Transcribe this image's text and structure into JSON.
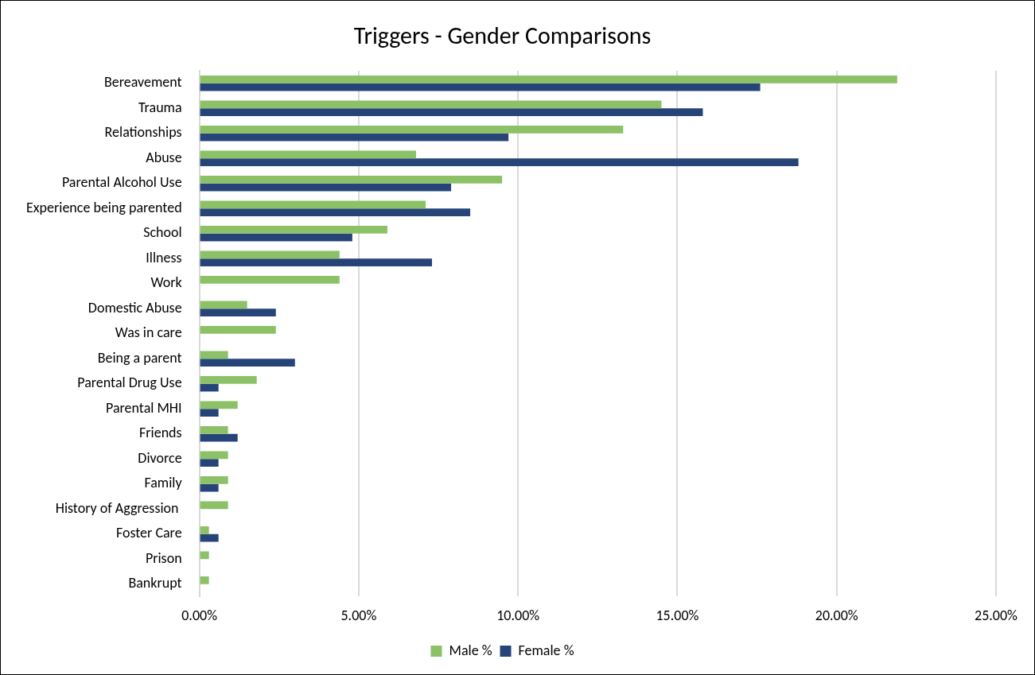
{
  "chart_data": {
    "type": "bar",
    "orientation": "horizontal",
    "title": "Triggers - Gender Comparisons",
    "categories": [
      "Bereavement",
      "Trauma",
      "Relationships",
      "Abuse",
      "Parental Alcohol Use",
      "Experience being parented",
      "School",
      "Illness",
      "Work",
      "Domestic Abuse",
      "Was in care",
      "Being a parent",
      "Parental Drug Use",
      "Parental MHI",
      "Friends",
      "Divorce",
      "Family",
      "History of Aggression ",
      "Foster Care",
      "Prison",
      "Bankrupt"
    ],
    "series": [
      {
        "name": "Male %",
        "color": "#8cc168",
        "values": [
          21.9,
          14.5,
          13.3,
          6.8,
          9.5,
          7.1,
          5.9,
          4.4,
          4.4,
          1.5,
          2.4,
          0.9,
          1.8,
          1.2,
          0.9,
          0.9,
          0.9,
          0.9,
          0.3,
          0.3,
          0.3
        ]
      },
      {
        "name": "Female %",
        "color": "#264478",
        "values": [
          17.6,
          15.8,
          9.7,
          18.8,
          7.9,
          8.5,
          4.8,
          7.3,
          null,
          2.4,
          null,
          3.0,
          0.6,
          0.6,
          1.2,
          0.6,
          0.6,
          null,
          0.6,
          null,
          null
        ]
      }
    ],
    "xlim": [
      0,
      25
    ],
    "xticks": [
      {
        "value": 0,
        "label": "0.00%"
      },
      {
        "value": 5,
        "label": "5.00%"
      },
      {
        "value": 10,
        "label": "10.00%"
      },
      {
        "value": 15,
        "label": "15.00%"
      },
      {
        "value": 20,
        "label": "20.00%"
      },
      {
        "value": 25,
        "label": "25.00%"
      }
    ],
    "grid": "x",
    "legend": "bottom"
  }
}
